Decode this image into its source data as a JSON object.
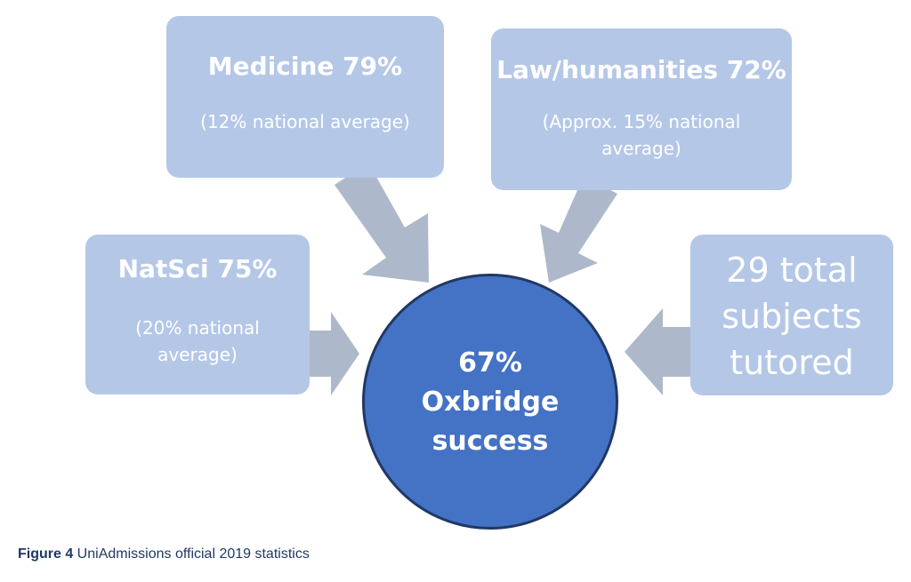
{
  "diagram": {
    "medicine": {
      "title": "Medicine 79%",
      "note": "(12% national average)"
    },
    "law": {
      "title": "Law/humanities 72%",
      "note": "(Approx. 15% national average)"
    },
    "natsci": {
      "title": "NatSci 75%",
      "note": "(20% national average)"
    },
    "subjects": {
      "text": "29 total subjects tutored"
    },
    "center": {
      "text": "67% Oxbridge success"
    }
  },
  "caption": {
    "label": "Figure 4",
    "text": " UniAdmissions official 2019 statistics"
  },
  "colors": {
    "box_fill": "#b4c7e7",
    "arrow_fill": "#adb9ca",
    "circle_fill": "#4472c4",
    "circle_border": "#203864",
    "caption_text": "#1f3864"
  }
}
